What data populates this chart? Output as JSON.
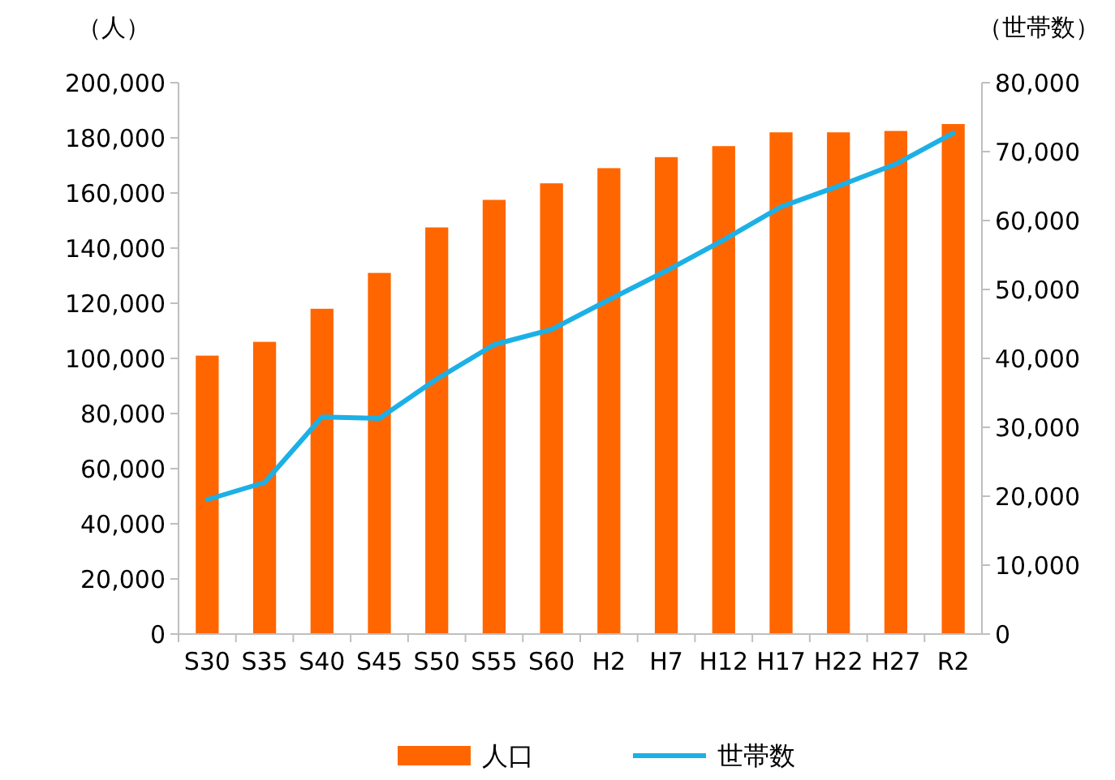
{
  "chart_data": {
    "type": "bar",
    "ylabel": "（人）",
    "y2label": "（世帯数）",
    "categories": [
      "S30",
      "S35",
      "S40",
      "S45",
      "S50",
      "S55",
      "S60",
      "H2",
      "H7",
      "H12",
      "H17",
      "H22",
      "H27",
      "R2"
    ],
    "series": [
      {
        "name": "人口",
        "color": "#ff6600",
        "values": [
          101000,
          106000,
          118000,
          131000,
          147500,
          157500,
          163500,
          169000,
          173000,
          177000,
          182000,
          182000,
          182500,
          185000
        ]
      },
      {
        "name": "世帯数",
        "type": "line",
        "axis": "y2",
        "color": "#1cb0e6",
        "values": [
          19500,
          22000,
          31500,
          31300,
          37000,
          42000,
          44200,
          48500,
          52700,
          57200,
          62000,
          65000,
          68200,
          72700
        ]
      }
    ],
    "ylim": [
      0,
      200000
    ],
    "yticks": [
      {
        "value": 0,
        "label": "0"
      },
      {
        "value": 20000,
        "label": "20,000"
      },
      {
        "value": 40000,
        "label": "40,000"
      },
      {
        "value": 60000,
        "label": "60,000"
      },
      {
        "value": 80000,
        "label": "80,000"
      },
      {
        "value": 100000,
        "label": "100,000"
      },
      {
        "value": 120000,
        "label": "120,000"
      },
      {
        "value": 140000,
        "label": "140,000"
      },
      {
        "value": 160000,
        "label": "160,000"
      },
      {
        "value": 180000,
        "label": "180,000"
      },
      {
        "value": 200000,
        "label": "200,000"
      }
    ],
    "y2lim": [
      0,
      80000
    ],
    "y2ticks": [
      {
        "value": 0,
        "label": "0"
      },
      {
        "value": 10000,
        "label": "10,000"
      },
      {
        "value": 20000,
        "label": "20,000"
      },
      {
        "value": 30000,
        "label": "30,000"
      },
      {
        "value": 40000,
        "label": "40,000"
      },
      {
        "value": 50000,
        "label": "50,000"
      },
      {
        "value": 60000,
        "label": "60,000"
      },
      {
        "value": 70000,
        "label": "70,000"
      },
      {
        "value": 80000,
        "label": "80,000"
      }
    ],
    "legend": "bottom",
    "line_style": "solid",
    "marker": "none"
  }
}
